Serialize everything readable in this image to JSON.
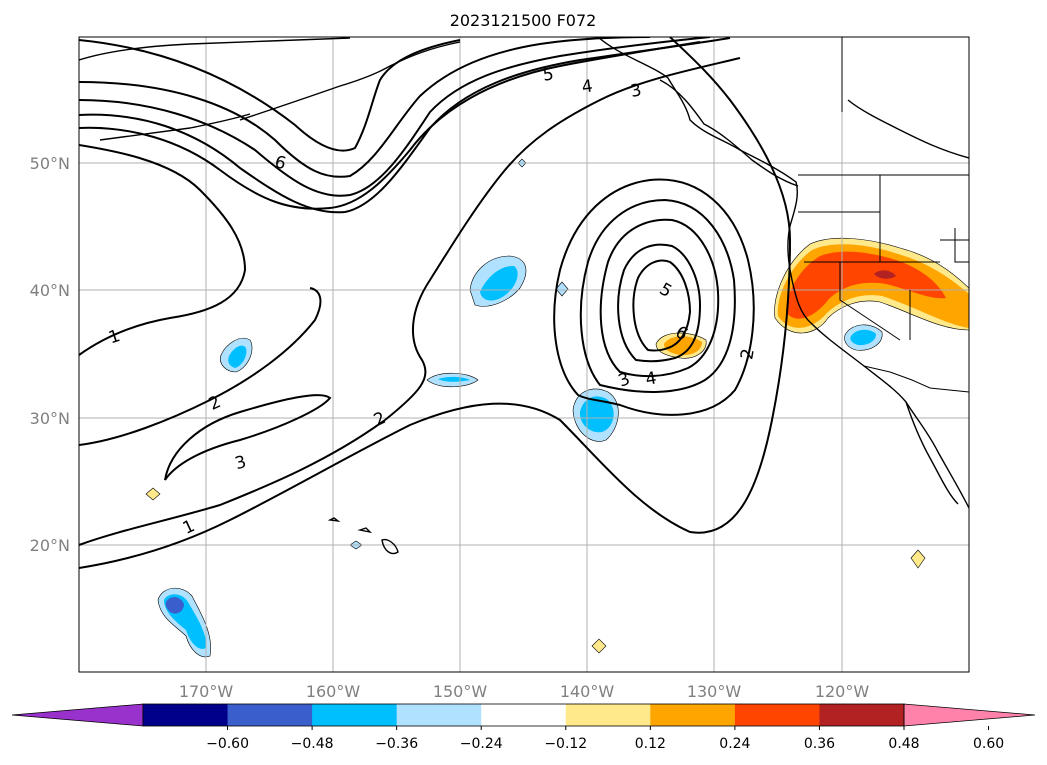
{
  "title": "2023121500 F072",
  "lat_ticks": [
    "20°N",
    "30°N",
    "40°N",
    "50°N"
  ],
  "lon_ticks": [
    "170°W",
    "160°W",
    "150°W",
    "140°W",
    "130°W",
    "120°W"
  ],
  "colorbar": {
    "tick_labels": [
      "−0.60",
      "−0.48",
      "−0.36",
      "−0.24",
      "−0.12",
      "0.12",
      "0.24",
      "0.36",
      "0.48",
      "0.60"
    ],
    "colors": [
      "#9932cc",
      "#00008b",
      "#3a5fcd",
      "#00bfff",
      "#b0e2ff",
      "#ffffff",
      "#ffe98a",
      "#ffa500",
      "#ff4500",
      "#b22222",
      "#ff82ab"
    ]
  },
  "contour_labels": [
    "1",
    "1",
    "2",
    "2",
    "2",
    "3",
    "3",
    "3",
    "4",
    "4",
    "5",
    "5",
    "6",
    "6"
  ],
  "colors": {
    "axis_tick_text": "#808080",
    "gridline": "#b0b0b0",
    "contour": "#000000",
    "land_outline": "#000000"
  }
}
